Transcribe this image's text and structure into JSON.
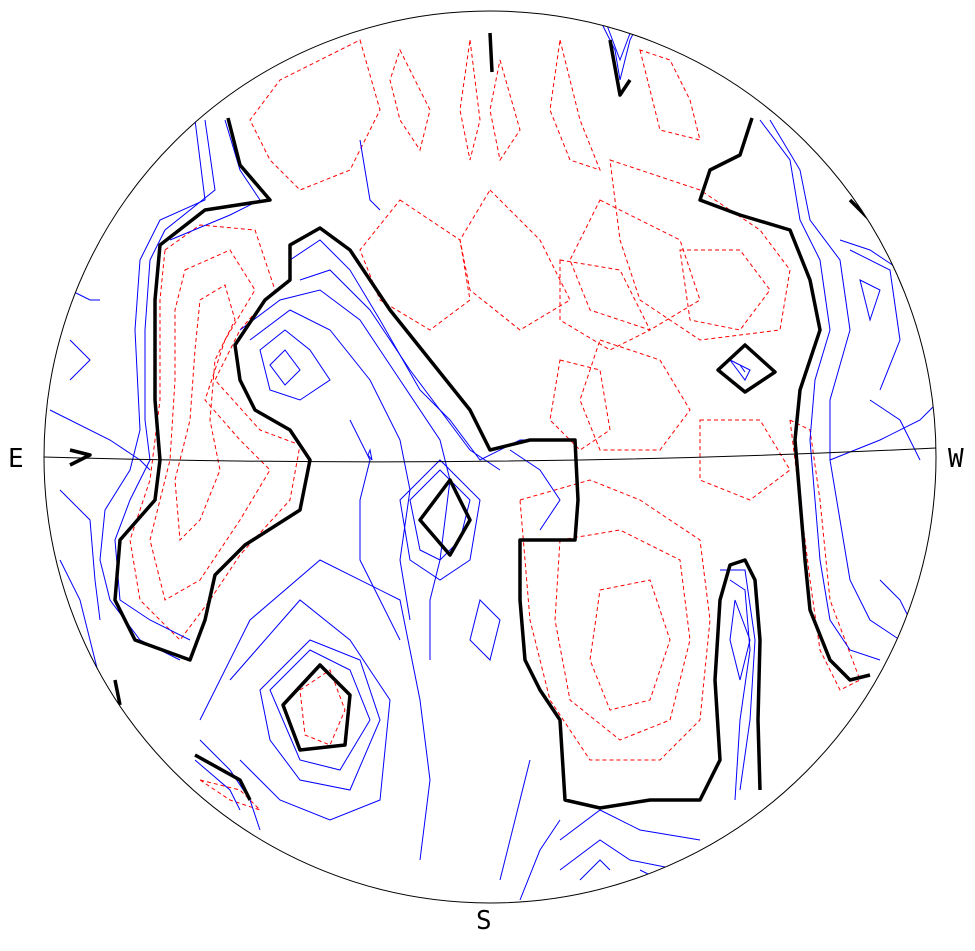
{
  "compass": {
    "east": "E",
    "west": "W",
    "south": "S"
  },
  "colors": {
    "outline": "#000000",
    "positive_contour": "#0000ff",
    "negative_contour": "#ff0000",
    "zero_contour": "#000000",
    "background": "#ffffff"
  },
  "contour_styles": {
    "positive": "solid",
    "negative": "dashed",
    "zero": "thick solid"
  }
}
